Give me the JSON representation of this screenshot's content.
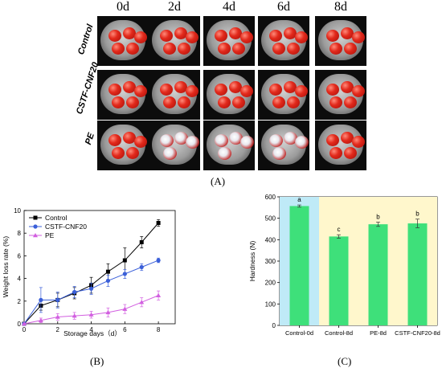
{
  "panelA": {
    "days": [
      "0d",
      "2d",
      "4d",
      "6d",
      "8d"
    ],
    "rows": [
      "Control",
      "CSTF-CNF20",
      "PE"
    ],
    "caption": "(A)"
  },
  "chart_data": [
    {
      "type": "line",
      "panel": "(B)",
      "xlabel": "Storage days（d）",
      "ylabel": "Weight loss rate (%)",
      "xlim": [
        0,
        9
      ],
      "ylim": [
        0,
        10
      ],
      "xticks": [
        0,
        2,
        4,
        6,
        8
      ],
      "yticks": [
        0,
        2,
        4,
        6,
        8,
        10
      ],
      "legend_position": "top-left",
      "x": [
        0,
        1,
        2,
        3,
        4,
        5,
        6,
        7,
        8
      ],
      "series": [
        {
          "name": "Control",
          "color": "#000000",
          "marker": "square",
          "values": [
            0,
            1.6,
            2.1,
            2.7,
            3.4,
            4.6,
            5.6,
            7.2,
            8.9
          ],
          "errors": [
            0,
            0.4,
            0.6,
            0.5,
            0.7,
            0.7,
            1.1,
            0.5,
            0.3
          ]
        },
        {
          "name": "CSTF-CNF20",
          "color": "#3a5fd9",
          "marker": "circle",
          "values": [
            0,
            2.1,
            2.1,
            2.8,
            3.1,
            3.8,
            4.4,
            5.0,
            5.6
          ],
          "errors": [
            0,
            1.1,
            0.7,
            0.5,
            0.5,
            0.5,
            0.4,
            0.3,
            0.2
          ]
        },
        {
          "name": "PE",
          "color": "#d25fe0",
          "marker": "triangle",
          "values": [
            0,
            0.3,
            0.6,
            0.7,
            0.8,
            1.0,
            1.3,
            1.9,
            2.5
          ],
          "errors": [
            0,
            0.2,
            0.3,
            0.3,
            0.3,
            0.4,
            0.4,
            0.4,
            0.4
          ]
        }
      ]
    },
    {
      "type": "bar",
      "panel": "(C)",
      "ylabel": "Hardness (N)",
      "ylim": [
        0,
        600
      ],
      "yticks": [
        0,
        100,
        200,
        300,
        400,
        500,
        600
      ],
      "categories": [
        "Control-0d",
        "Control-8d",
        "PE-8d",
        "CSTF-CNF20-8d"
      ],
      "values": [
        557,
        415,
        472,
        476
      ],
      "errors": [
        5,
        8,
        10,
        20
      ],
      "letters": [
        "a",
        "c",
        "b",
        "b"
      ],
      "bar_color": "#3ee07a",
      "background_colors": [
        "#bfeaf7",
        "#fff7cc"
      ]
    }
  ]
}
